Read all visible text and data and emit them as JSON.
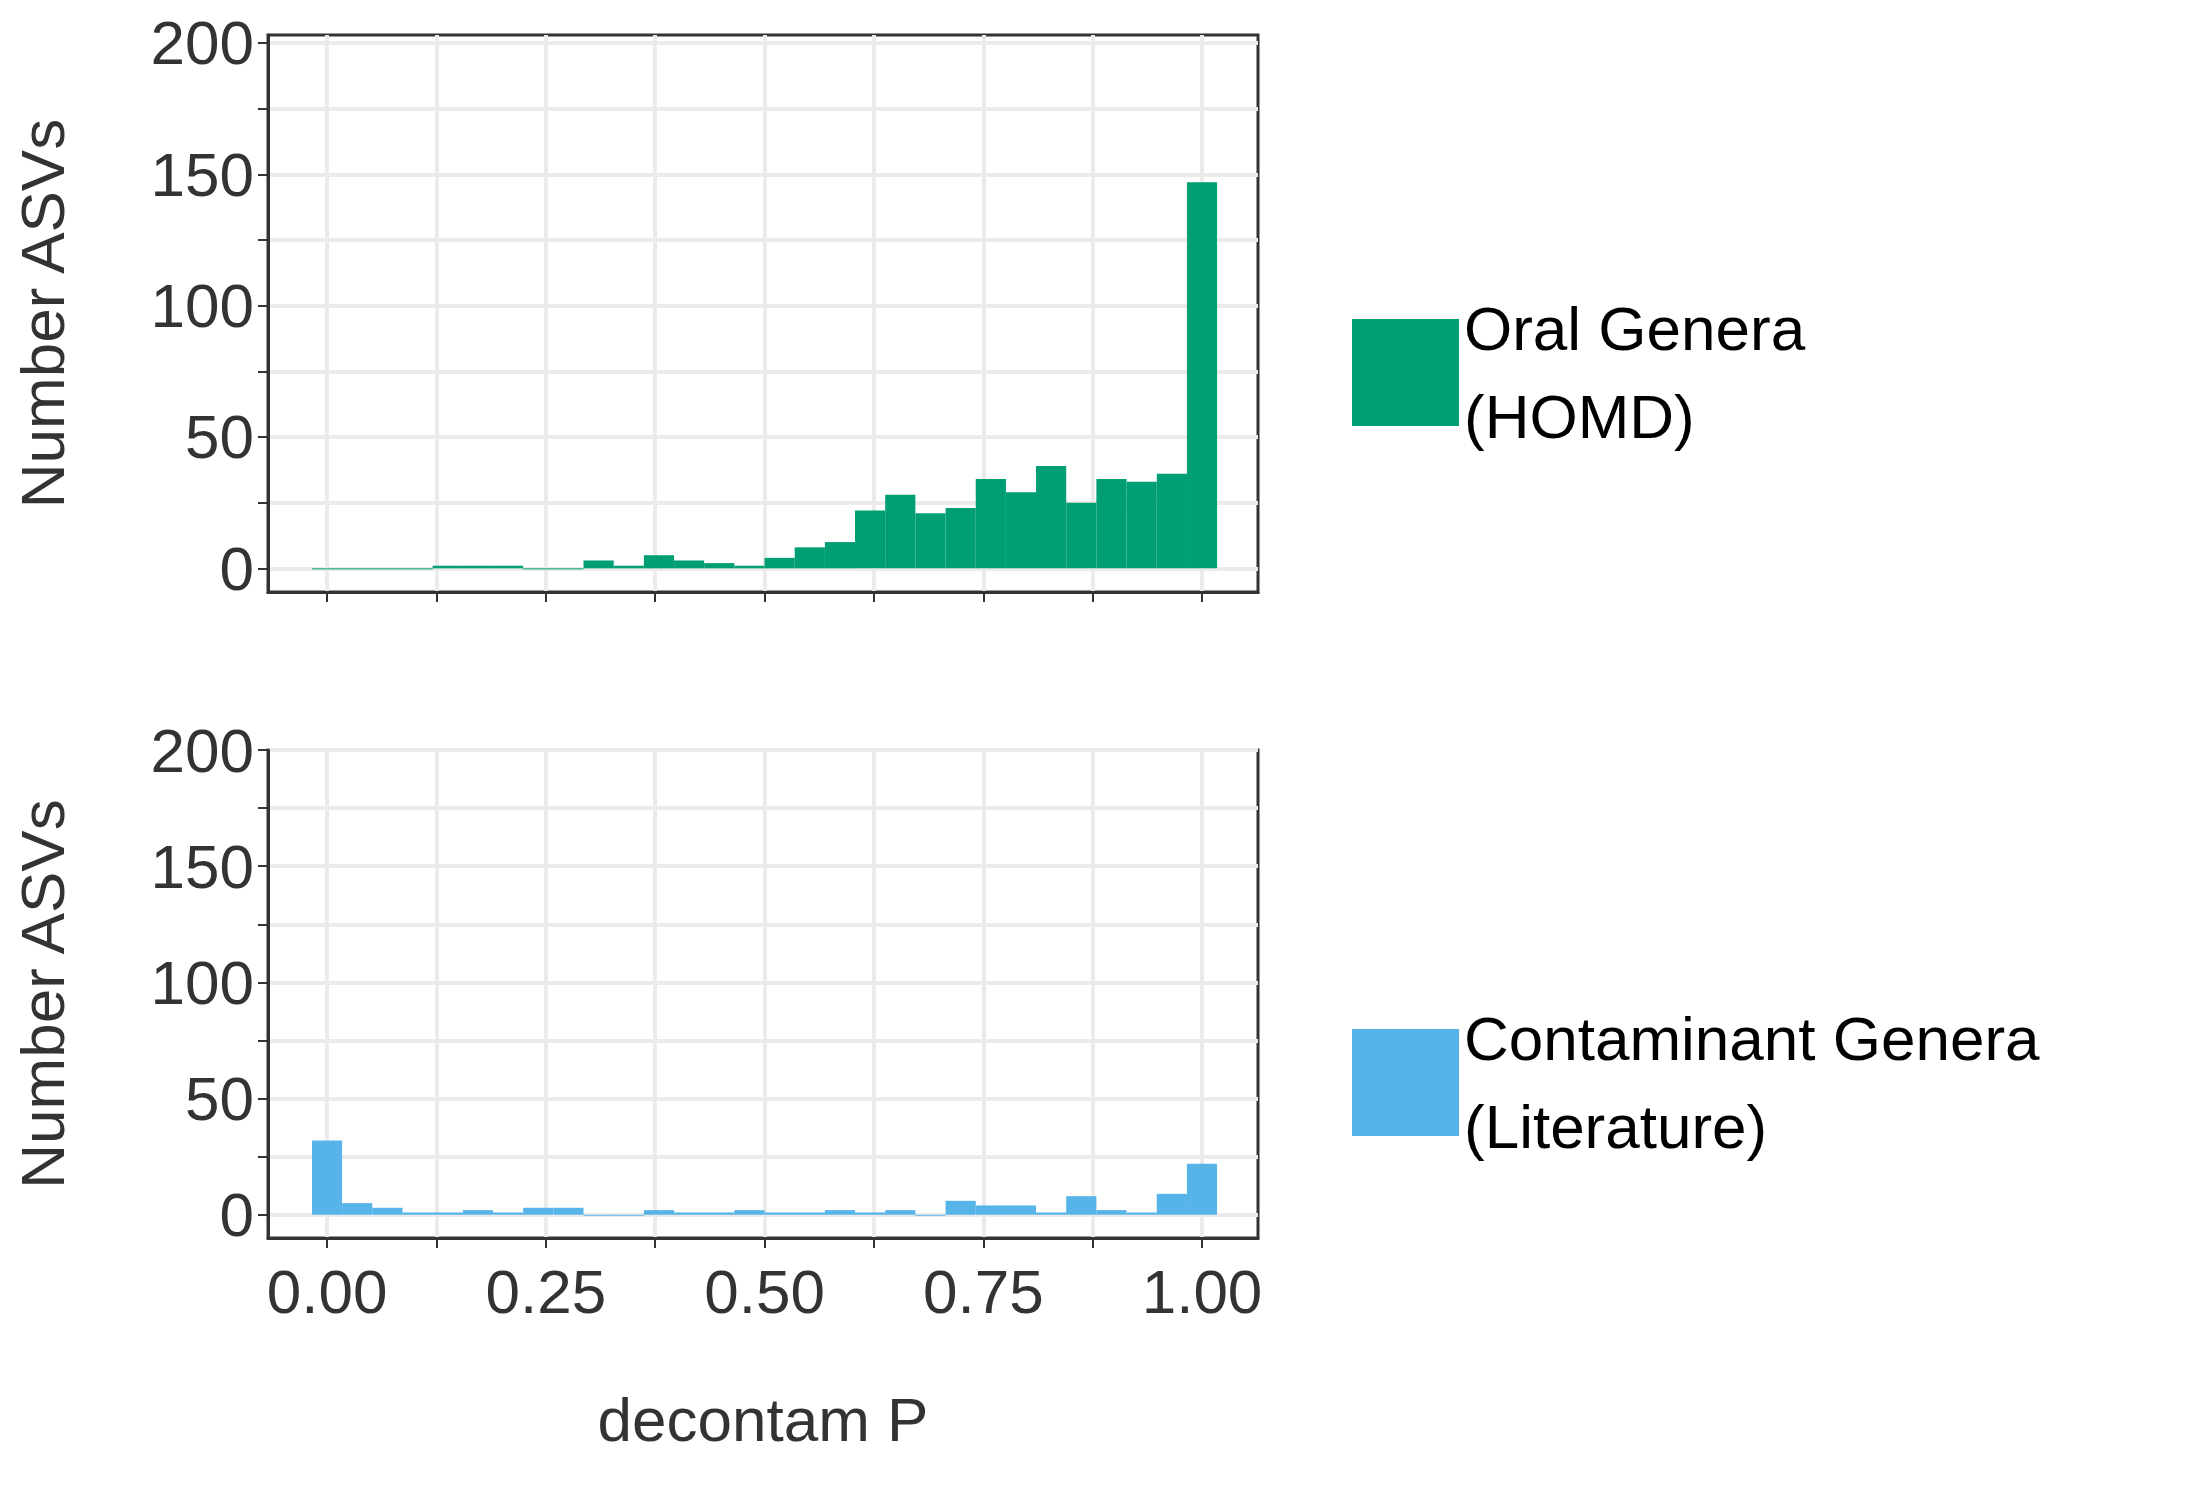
{
  "chart_data": [
    {
      "type": "histogram",
      "ylabel": "Number ASVs",
      "bins": [
        -0.0172,
        0.0172,
        0.0517,
        0.0862,
        0.1207,
        0.1552,
        0.1897,
        0.2241,
        0.2586,
        0.2931,
        0.3276,
        0.3621,
        0.3966,
        0.431,
        0.4655,
        0.5,
        0.5345,
        0.569,
        0.6034,
        0.6379,
        0.6724,
        0.7069,
        0.7414,
        0.7759,
        0.8103,
        0.8448,
        0.8793,
        0.9138,
        0.9483,
        0.9828,
        1.0172
      ],
      "series": [
        {
          "name": "Oral Genera (HOMD)",
          "color": "#009e73",
          "values": [
            0,
            0,
            0,
            0,
            1,
            1,
            1,
            0,
            0,
            3,
            1,
            5,
            3,
            2,
            1,
            4,
            8,
            10,
            22,
            28,
            21,
            23,
            34,
            29,
            39,
            25,
            34,
            33,
            36,
            147
          ]
        }
      ],
      "xlim": [
        -0.0675,
        1.064
      ],
      "ylim": [
        -9,
        203
      ],
      "xticks": [
        0,
        0.125,
        0.25,
        0.375,
        0.5,
        0.625,
        0.75,
        0.875,
        1
      ],
      "yticks": [
        0,
        {
          "value": 25,
          "label": null
        },
        50,
        {
          "value": 75,
          "label": null
        },
        100,
        {
          "value": 125,
          "label": null
        },
        150,
        {
          "value": 175,
          "label": null
        },
        200
      ],
      "tick_labels": "y",
      "grid": true,
      "legend": "right"
    },
    {
      "type": "histogram",
      "ylabel": "Number ASVs",
      "xlabel": "decontam P",
      "bins": [
        -0.0172,
        0.0172,
        0.0517,
        0.0862,
        0.1207,
        0.1552,
        0.1897,
        0.2241,
        0.2586,
        0.2931,
        0.3276,
        0.3621,
        0.3966,
        0.431,
        0.4655,
        0.5,
        0.5345,
        0.569,
        0.6034,
        0.6379,
        0.6724,
        0.7069,
        0.7414,
        0.7759,
        0.8103,
        0.8448,
        0.8793,
        0.9138,
        0.9483,
        0.9828,
        1.0172
      ],
      "series": [
        {
          "name": "Contaminant Genera (Literature)",
          "color": "#56b4e9",
          "values": [
            32,
            5,
            3,
            1,
            1,
            2,
            1,
            3,
            3,
            0,
            0,
            2,
            1,
            1,
            2,
            1,
            1,
            2,
            1,
            2,
            0,
            6,
            4,
            4,
            1,
            8,
            2,
            1,
            9,
            22
          ]
        }
      ],
      "xlim": [
        -0.0675,
        1.064
      ],
      "ylim": [
        -10,
        200
      ],
      "xticks": [
        {
          "value": 0,
          "label": "0.00"
        },
        {
          "value": 0.125,
          "label": null
        },
        {
          "value": 0.25,
          "label": "0.25"
        },
        {
          "value": 0.375,
          "label": null
        },
        {
          "value": 0.5,
          "label": "0.50"
        },
        {
          "value": 0.625,
          "label": null
        },
        {
          "value": 0.75,
          "label": "0.75"
        },
        {
          "value": 0.875,
          "label": null
        },
        {
          "value": 1,
          "label": "1.00"
        }
      ],
      "yticks": [
        0,
        {
          "value": 25,
          "label": null
        },
        50,
        {
          "value": 75,
          "label": null
        },
        100,
        {
          "value": 125,
          "label": null
        },
        150,
        {
          "value": 175,
          "label": null
        },
        200
      ],
      "grid": true,
      "legend": "right"
    }
  ]
}
